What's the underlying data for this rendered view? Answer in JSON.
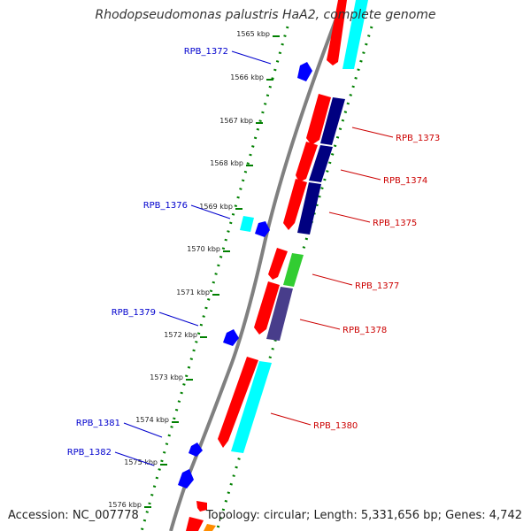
{
  "header": {
    "title": "Rhodopseudomonas palustris HaA2, complete genome"
  },
  "footer": {
    "accession": "Accession: NC_007778",
    "summary": "Topology: circular; Length: 5,331,656 bp; Genes: 4,742"
  },
  "ticks": [
    {
      "label": "1565 kbp",
      "kbp": 1565
    },
    {
      "label": "1566 kbp",
      "kbp": 1566
    },
    {
      "label": "1567 kbp",
      "kbp": 1567
    },
    {
      "label": "1568 kbp",
      "kbp": 1568
    },
    {
      "label": "1569 kbp",
      "kbp": 1569
    },
    {
      "label": "1570 kbp",
      "kbp": 1570
    },
    {
      "label": "1571 kbp",
      "kbp": 1571
    },
    {
      "label": "1572 kbp",
      "kbp": 1572
    },
    {
      "label": "1573 kbp",
      "kbp": 1573
    },
    {
      "label": "1574 kbp",
      "kbp": 1574
    },
    {
      "label": "1575 kbp",
      "kbp": 1575
    },
    {
      "label": "1576 kbp",
      "kbp": 1576
    }
  ],
  "gene_labels": [
    {
      "text": "RPB_1372",
      "side": "left"
    },
    {
      "text": "RPB_1373",
      "side": "right"
    },
    {
      "text": "RPB_1374",
      "side": "right"
    },
    {
      "text": "RPB_1375",
      "side": "right"
    },
    {
      "text": "RPB_1376",
      "side": "left"
    },
    {
      "text": "RPB_1377",
      "side": "right"
    },
    {
      "text": "RPB_1378",
      "side": "right"
    },
    {
      "text": "RPB_1379",
      "side": "left"
    },
    {
      "text": "RPB_1380",
      "side": "right"
    },
    {
      "text": "RPB_1381",
      "side": "left"
    },
    {
      "text": "RPB_1382",
      "side": "left"
    }
  ],
  "colors": {
    "cds_red": "#ff0000",
    "blue": "#0000ff",
    "navy": "#000080",
    "cyan": "#00ffff",
    "green": "#32cd32",
    "purple": "#483d8b",
    "orange": "#ff8c00",
    "backbone": "#808080",
    "tick_green": "#008000",
    "label_blue": "#0000cd",
    "label_red": "#cc0000"
  }
}
